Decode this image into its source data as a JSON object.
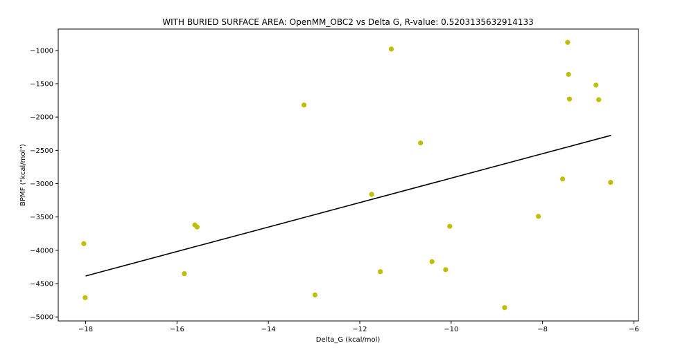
{
  "chart_data": {
    "type": "scatter",
    "title": "WITH BURIED SURFACE AREA: OpenMM_OBC2 vs Delta G, R-value: 0.5203135632914133",
    "xlabel": "Delta_G (kcal/mol)",
    "ylabel": "BPMF (\"kcal/mol\")",
    "xlim": [
      -18.6,
      -5.9
    ],
    "ylim": [
      -5060,
      -680
    ],
    "xticks": [
      -18,
      -16,
      -14,
      -12,
      -10,
      -8,
      -6
    ],
    "yticks": [
      -1000,
      -1500,
      -2000,
      -2500,
      -3000,
      -3500,
      -4000,
      -4500,
      -5000
    ],
    "xtick_labels": [
      "−18",
      "−16",
      "−14",
      "−12",
      "−10",
      "−8",
      "−6"
    ],
    "ytick_labels": [
      "−1000",
      "−1500",
      "−2000",
      "−2500",
      "−3000",
      "−3500",
      "−4000",
      "−4500",
      "−5000"
    ],
    "grid": false,
    "point_color": "#bfbf00",
    "line_color": "#000000",
    "series": [
      {
        "type": "scatter",
        "x": [
          -18.04,
          -18.01,
          -15.84,
          -15.61,
          -15.56,
          -13.22,
          -12.98,
          -11.74,
          -11.55,
          -11.31,
          -10.67,
          -10.42,
          -10.12,
          -10.03,
          -8.83,
          -8.09,
          -7.56,
          -7.45,
          -7.43,
          -7.41,
          -6.83,
          -6.77,
          -6.51
        ],
        "y": [
          -3900,
          -4710,
          -4350,
          -3620,
          -3650,
          -1820,
          -4670,
          -3160,
          -4320,
          -980,
          -2390,
          -4170,
          -4290,
          -3640,
          -4860,
          -3490,
          -2930,
          -880,
          -1360,
          -1730,
          -1520,
          -1740,
          -2980
        ]
      },
      {
        "type": "line",
        "x": [
          -18.0,
          -6.5
        ],
        "y": [
          -4385,
          -2275
        ]
      }
    ]
  }
}
